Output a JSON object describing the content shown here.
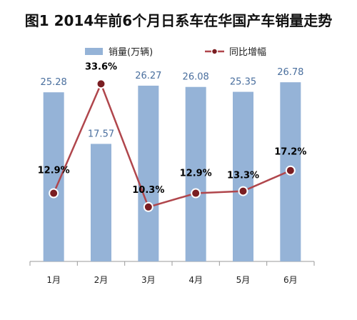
{
  "chart_data": {
    "type": "bar",
    "title": "图1  2014年前6个月日系车在华国产车销量走势",
    "categories": [
      "1月",
      "2月",
      "3月",
      "4月",
      "5月",
      "6月"
    ],
    "series": [
      {
        "name": "销量(万辆)",
        "type": "bar",
        "values": [
          25.28,
          17.57,
          26.27,
          26.08,
          25.35,
          26.78
        ],
        "labels": [
          "25.28",
          "17.57",
          "26.27",
          "26.08",
          "25.35",
          "26.78"
        ],
        "color": "#95B3D7"
      },
      {
        "name": "同比增幅",
        "type": "line",
        "values": [
          12.9,
          33.6,
          10.3,
          12.9,
          13.3,
          17.2
        ],
        "labels": [
          "12.9%",
          "33.6%",
          "10.3%",
          "12.9%",
          "13.3%",
          "17.2%"
        ],
        "color": "#B0464C"
      }
    ],
    "xlabel": "",
    "ylabel": "",
    "ylim": [
      0,
      30
    ],
    "y2lim": [
      0,
      40
    ],
    "grid": false,
    "legend_position": "top"
  }
}
